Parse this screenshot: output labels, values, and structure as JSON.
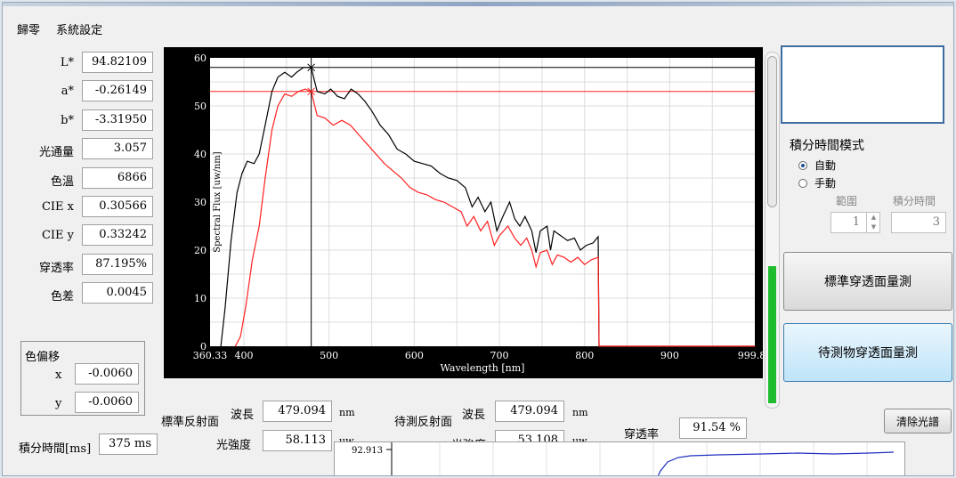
{
  "menu": [
    "歸零",
    "系統設定"
  ],
  "fields": [
    {
      "label": "L*",
      "value": "94.82109"
    },
    {
      "label": "a*",
      "value": "-0.26149"
    },
    {
      "label": "b*",
      "value": "-3.31950"
    },
    {
      "label": "光通量",
      "value": "3.057"
    },
    {
      "label": "色溫",
      "value": "6866"
    },
    {
      "label": "CIE x",
      "value": "0.30566"
    },
    {
      "label": "CIE y",
      "value": "0.33242"
    },
    {
      "label": "穿透率",
      "value": "87.195%"
    },
    {
      "label": "色差",
      "value": "0.0045"
    }
  ],
  "shift": {
    "title": "色偏移",
    "x_label": "x",
    "x_value": "-0.0060",
    "y_label": "y",
    "y_value": "-0.0060"
  },
  "integration": {
    "label": "積分時間[ms]",
    "value": "375 ms"
  },
  "chart_data": {
    "type": "line",
    "xlabel": "Wavelength [nm]",
    "ylabel": "Spectral Flux [uw/nm]",
    "xlim": [
      360.33,
      999.87
    ],
    "ylim": [
      0,
      60
    ],
    "x_ticks": [
      "360.33",
      "400",
      "500",
      "600",
      "700",
      "800",
      "900",
      "999.87"
    ],
    "y_ticks": [
      "0",
      "10",
      "20",
      "30",
      "40",
      "50",
      "60"
    ],
    "cursor_x": 479.094,
    "series": [
      {
        "color": "#000000",
        "points": [
          [
            373,
            0
          ],
          [
            378,
            8
          ],
          [
            385,
            22
          ],
          [
            392,
            32
          ],
          [
            398,
            36
          ],
          [
            404,
            38.5
          ],
          [
            412,
            38
          ],
          [
            418,
            40
          ],
          [
            425,
            46
          ],
          [
            433,
            53
          ],
          [
            440,
            56
          ],
          [
            448,
            57
          ],
          [
            456,
            56
          ],
          [
            462,
            57
          ],
          [
            470,
            58
          ],
          [
            479,
            58
          ],
          [
            486,
            53
          ],
          [
            495,
            52.5
          ],
          [
            502,
            53.5
          ],
          [
            510,
            52
          ],
          [
            518,
            51.5
          ],
          [
            526,
            53.5
          ],
          [
            534,
            52.5
          ],
          [
            542,
            51
          ],
          [
            550,
            49
          ],
          [
            560,
            46
          ],
          [
            570,
            44
          ],
          [
            580,
            41
          ],
          [
            590,
            40
          ],
          [
            600,
            38.5
          ],
          [
            610,
            38
          ],
          [
            620,
            37.5
          ],
          [
            630,
            36
          ],
          [
            640,
            35
          ],
          [
            650,
            34.5
          ],
          [
            660,
            33
          ],
          [
            668,
            29
          ],
          [
            675,
            31
          ],
          [
            683,
            28
          ],
          [
            690,
            30
          ],
          [
            697,
            24
          ],
          [
            704,
            27
          ],
          [
            712,
            30
          ],
          [
            718,
            26.5
          ],
          [
            724,
            25
          ],
          [
            730,
            27
          ],
          [
            738,
            24
          ],
          [
            743,
            19.5
          ],
          [
            748,
            24
          ],
          [
            756,
            25
          ],
          [
            760,
            20
          ],
          [
            764,
            24
          ],
          [
            772,
            23
          ],
          [
            780,
            22
          ],
          [
            788,
            22.5
          ],
          [
            795,
            20
          ],
          [
            802,
            21
          ],
          [
            810,
            21.5
          ],
          [
            816,
            22.8
          ],
          [
            817,
            0
          ],
          [
            1000,
            0
          ]
        ]
      },
      {
        "color": "#ff2020",
        "points": [
          [
            390,
            0
          ],
          [
            396,
            2
          ],
          [
            402,
            8
          ],
          [
            410,
            18
          ],
          [
            418,
            25
          ],
          [
            425,
            35
          ],
          [
            433,
            45
          ],
          [
            440,
            50
          ],
          [
            448,
            52.5
          ],
          [
            456,
            52
          ],
          [
            464,
            53
          ],
          [
            472,
            53.5
          ],
          [
            479,
            53
          ],
          [
            486,
            48
          ],
          [
            495,
            47.5
          ],
          [
            505,
            46
          ],
          [
            515,
            47
          ],
          [
            525,
            46
          ],
          [
            535,
            44
          ],
          [
            545,
            42
          ],
          [
            555,
            40
          ],
          [
            565,
            38
          ],
          [
            575,
            36.5
          ],
          [
            585,
            35
          ],
          [
            595,
            33
          ],
          [
            605,
            32
          ],
          [
            615,
            31.5
          ],
          [
            625,
            30.5
          ],
          [
            635,
            30
          ],
          [
            645,
            29
          ],
          [
            655,
            28
          ],
          [
            662,
            25
          ],
          [
            670,
            27
          ],
          [
            678,
            24
          ],
          [
            686,
            26
          ],
          [
            694,
            21
          ],
          [
            700,
            23
          ],
          [
            710,
            25
          ],
          [
            718,
            22.5
          ],
          [
            725,
            21
          ],
          [
            732,
            22.5
          ],
          [
            738,
            20
          ],
          [
            743,
            16.5
          ],
          [
            748,
            19.5
          ],
          [
            756,
            20
          ],
          [
            762,
            17
          ],
          [
            768,
            19
          ],
          [
            776,
            18.5
          ],
          [
            784,
            17.5
          ],
          [
            792,
            18.5
          ],
          [
            800,
            17
          ],
          [
            808,
            18
          ],
          [
            816,
            18.5
          ],
          [
            817,
            0
          ],
          [
            1000,
            0
          ]
        ]
      }
    ],
    "ref_lines": [
      {
        "color": "#000000",
        "y": 58
      },
      {
        "color": "#ff2020",
        "y": 53
      }
    ]
  },
  "reading": {
    "std_label": "標準反射面",
    "wl_label": "波長",
    "std_wl": "479.094",
    "nm": "nm",
    "int_label": "光強度",
    "std_int": "58.113",
    "uw": "uw",
    "test_label": "待測反射面",
    "test_wl": "479.094",
    "test_int": "53.108",
    "trans_label": "穿透率",
    "trans_value": "91.54 %"
  },
  "right": {
    "mode_title": "積分時間模式",
    "auto": "自動",
    "manual": "手動",
    "range_label": "範圍",
    "int_time_label": "積分時間",
    "range_value": "1",
    "int_time_value": "3",
    "btn_std": "標準穿透面量測",
    "btn_test": "待測物穿透面量測",
    "btn_clear": "清除光譜",
    "level_fraction": 0.67
  },
  "mini_chart": {
    "y_top": "92.913"
  }
}
